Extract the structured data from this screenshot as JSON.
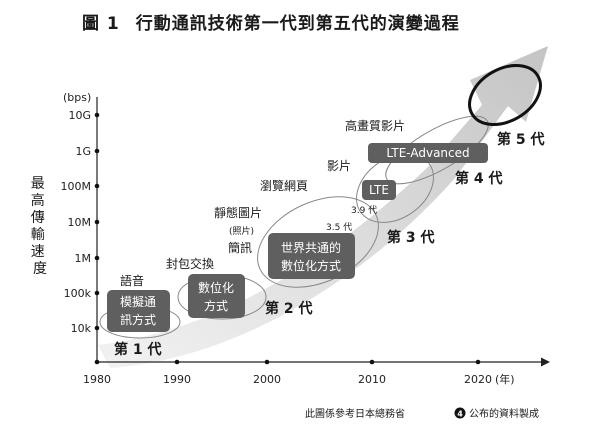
{
  "figure": {
    "number": "圖 1",
    "title": "行動通訊技術第一代到第五代的演變過程"
  },
  "axes": {
    "y_unit": "(bps)",
    "y_title": "最高傳輸速度",
    "y_ticks": [
      "10k",
      "100k",
      "1M",
      "10M",
      "100M",
      "1G",
      "10G"
    ],
    "x_ticks": [
      "1980",
      "1990",
      "2000",
      "2010",
      "2020"
    ],
    "x_unit": "(年)"
  },
  "generations": [
    {
      "label": "第 1 代",
      "box": [
        "模擬通",
        "訊方式"
      ],
      "note": "語音"
    },
    {
      "label": "第 2 代",
      "box": [
        "數位化",
        "方式"
      ],
      "notes": [
        "封包交換",
        "簡訊"
      ]
    },
    {
      "label": "第 3 代",
      "box": [
        "世界共通的",
        "數位化方式"
      ],
      "notes": [
        "靜態圖片",
        "(照片)",
        "3.5 代"
      ]
    },
    {
      "label": "第 4 代",
      "box": [
        "LTE"
      ],
      "notes": [
        "瀏覽網頁",
        "影片",
        "3.9 代"
      ]
    },
    {
      "label": "第 5 代",
      "box": [
        "LTE-Advanced"
      ],
      "notes": [
        "高畫質影片"
      ]
    }
  ],
  "source": {
    "text_before": "此圖係參考日本總務省",
    "circled_number": "4",
    "text_after": "公布的資料製成"
  }
}
